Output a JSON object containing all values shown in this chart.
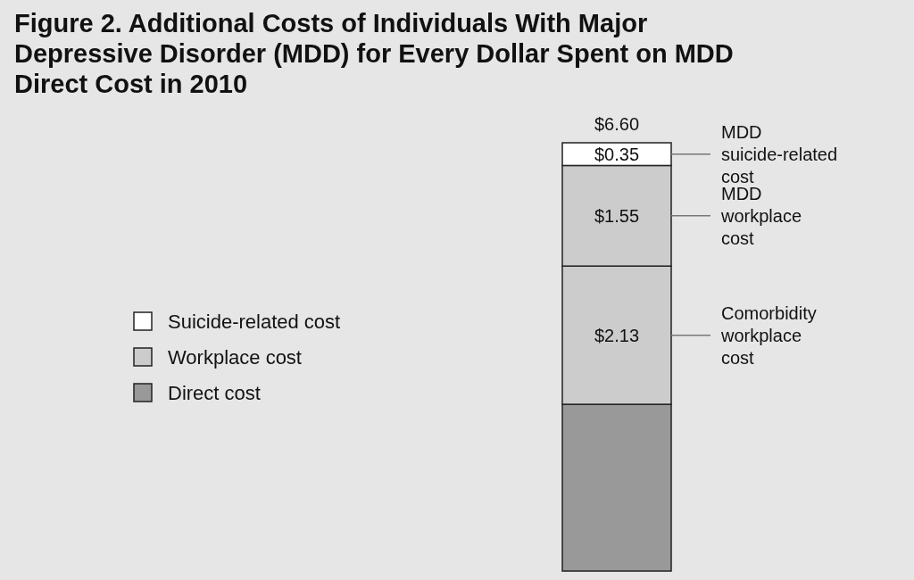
{
  "chart_data": {
    "type": "bar",
    "stacked": true,
    "title": "Figure 2. Additional Costs of Individuals With Major Depressive Disorder (MDD) for Every Dollar Spent on MDD Direct Cost in 2010",
    "categories": [
      null
    ],
    "ylim": [
      0,
      6.6
    ],
    "legend": "left",
    "series": [
      {
        "name": "Direct cost",
        "color": "#999999",
        "values": [
          2.57
        ],
        "value_labels": [
          null
        ]
      },
      {
        "name": "Workplace cost",
        "color": "#cccccc",
        "values": [
          2.13
        ],
        "value_labels": [
          "$2.13"
        ]
      },
      {
        "color": "#cccccc",
        "values": [
          1.55
        ],
        "value_labels": [
          "$1.55"
        ]
      },
      {
        "name": "Suicide-related cost",
        "color": "#ffffff",
        "values": [
          0.35
        ],
        "value_labels": [
          "$0.35"
        ]
      }
    ],
    "totals": [
      "$6.60"
    ],
    "annotations": [
      "MDD suicide-related cost",
      "MDD workplace cost",
      "Comorbidity workplace cost"
    ]
  }
}
